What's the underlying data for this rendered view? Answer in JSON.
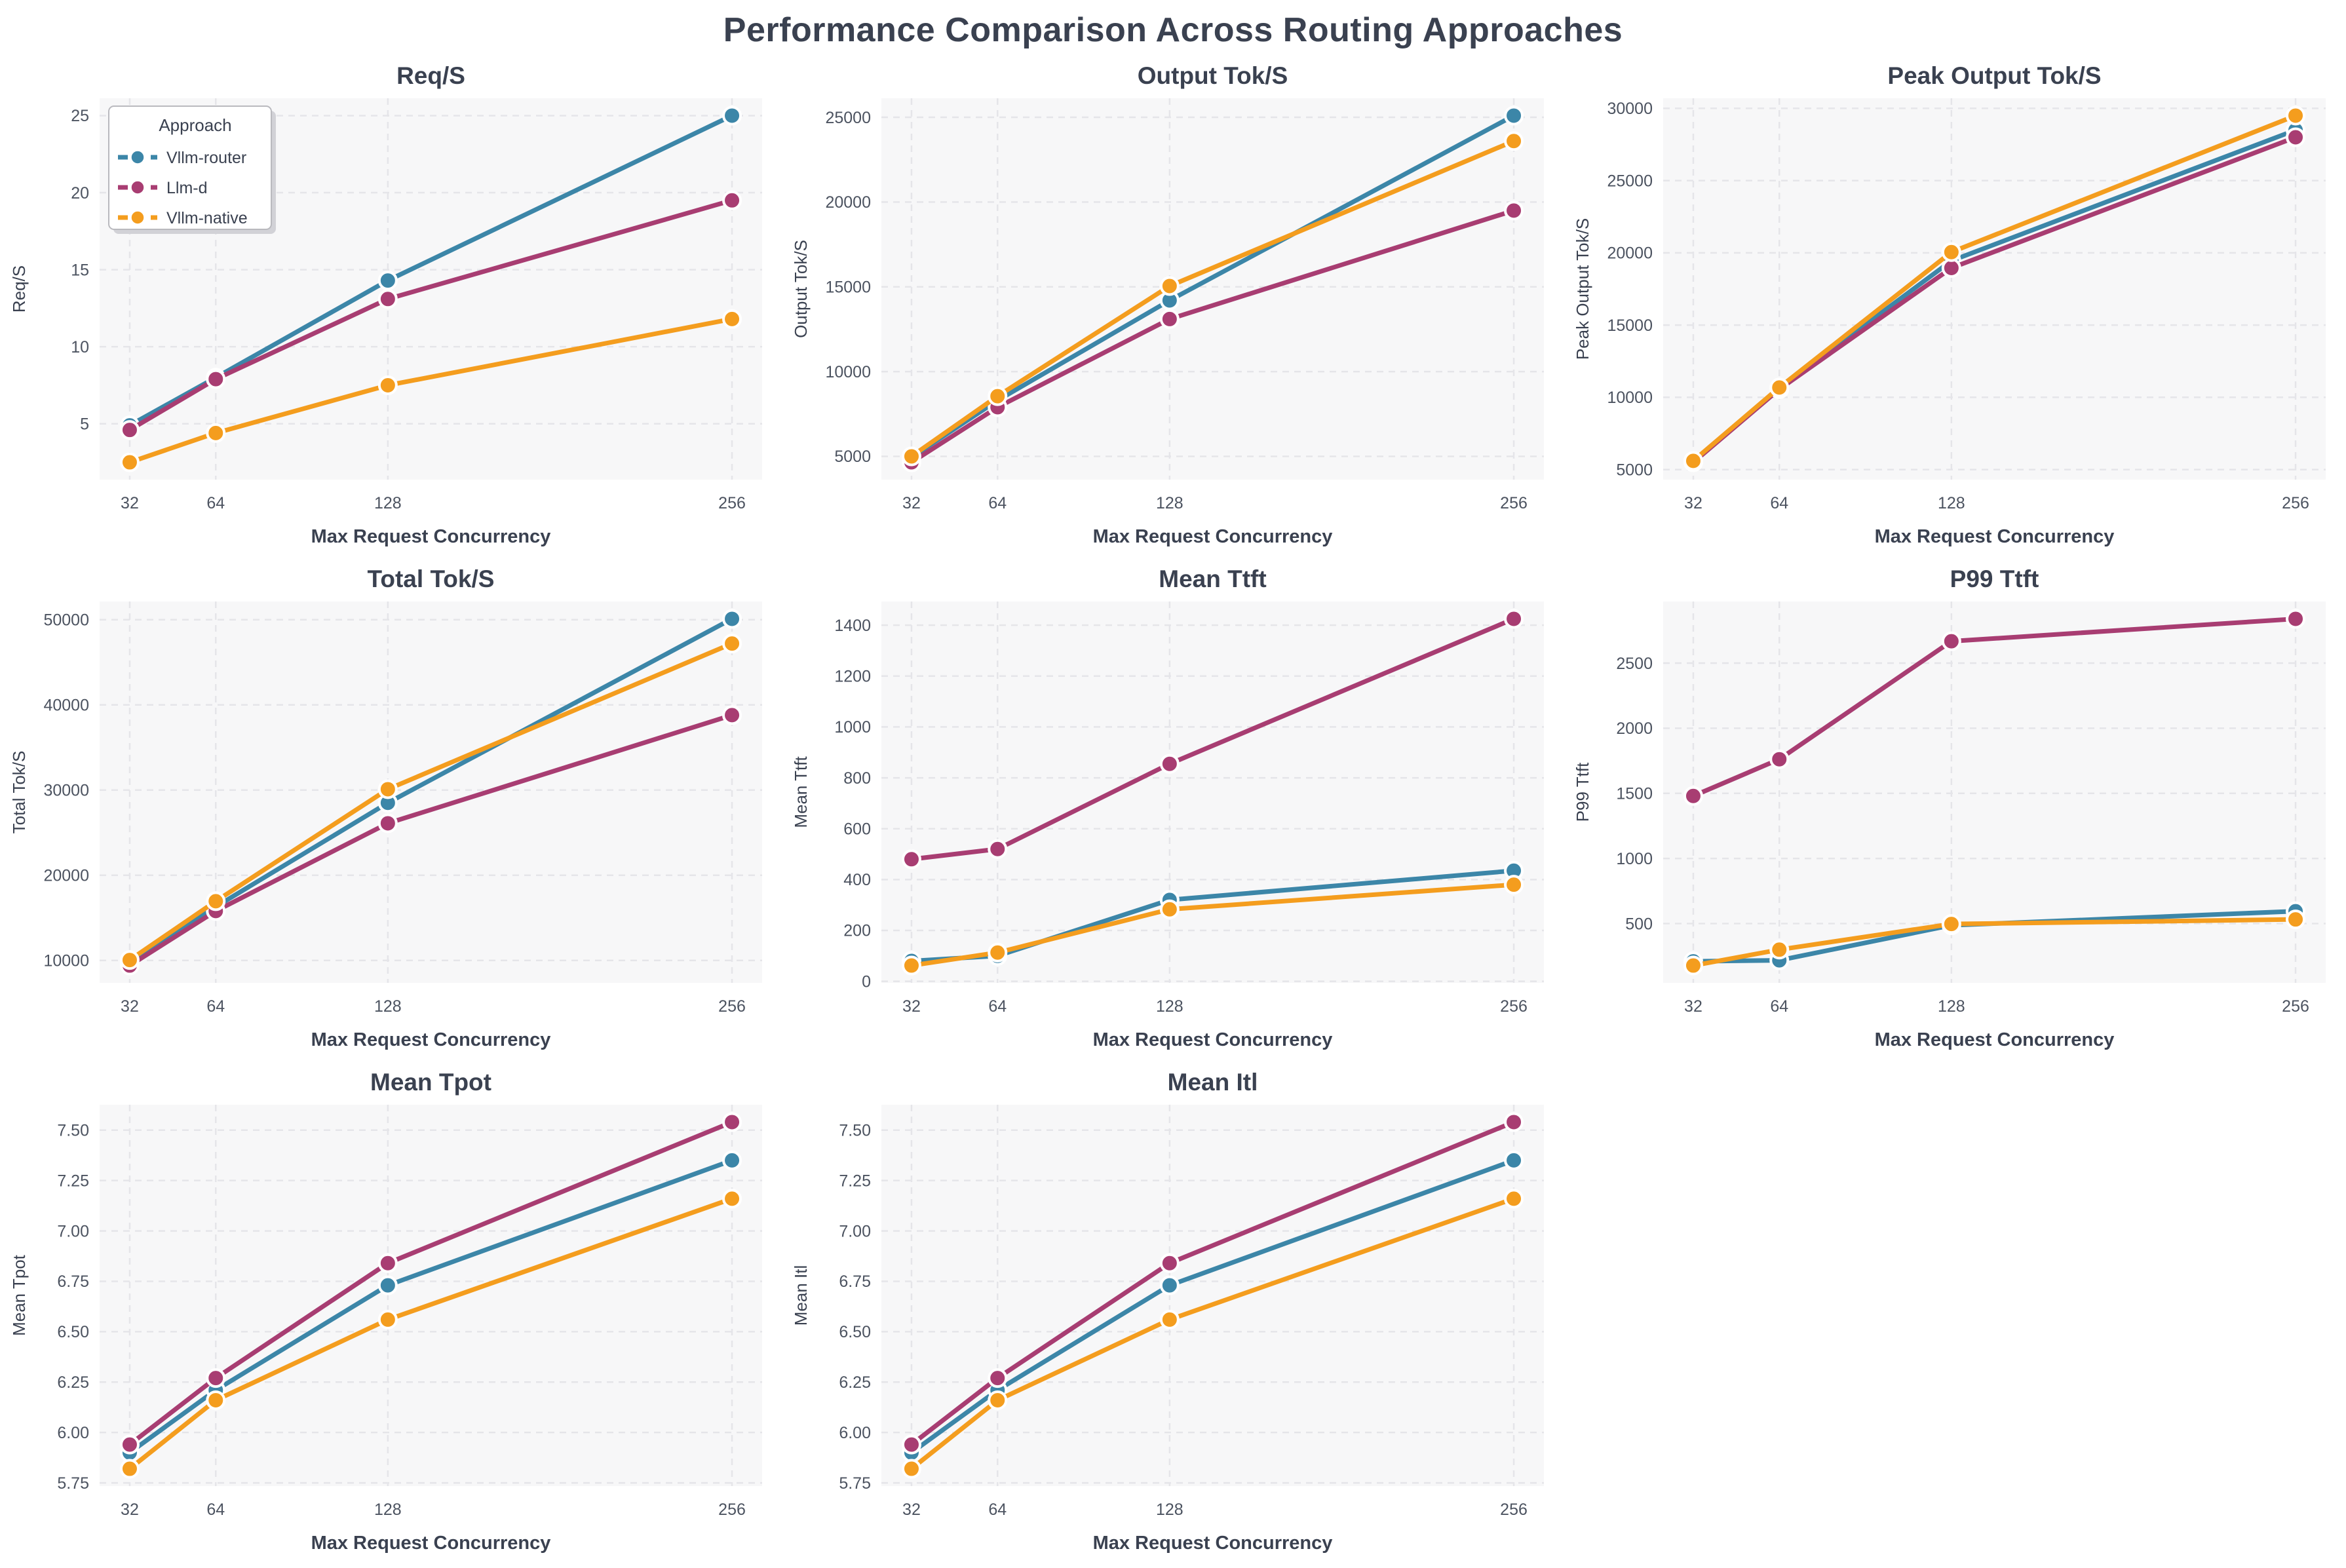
{
  "figure": {
    "title": "Performance Comparison Across Routing Approaches"
  },
  "legend": {
    "title": "Approach",
    "entries": [
      {
        "label": "Vllm-router",
        "color_key": "vllm_router"
      },
      {
        "label": "Llm-d",
        "color_key": "llm_d"
      },
      {
        "label": "Vllm-native",
        "color_key": "vllm_native"
      }
    ]
  },
  "colors": {
    "vllm_router": "#3C86A8",
    "llm_d": "#A83D72",
    "vllm_native": "#F49D1E",
    "plot_bg": "#F7F7F8",
    "grid": "#E5E5E9",
    "text_dark": "#3A4150",
    "text_tick": "#4C5360",
    "legend_border": "#B9B9BE",
    "legend_shadow": "#D2D2D7"
  },
  "axis": {
    "xlabel": "Max Request Concurrency",
    "x_values": [
      32,
      64,
      128,
      256
    ],
    "x_tick_labels": [
      "32",
      "64",
      "128",
      "256"
    ]
  },
  "chart_data": [
    {
      "id": "req-s",
      "type": "line",
      "title": "Req/S",
      "ylabel": "Req/S",
      "xlabel": "Max Request Concurrency",
      "x": [
        32,
        64,
        128,
        256
      ],
      "yticks": [
        5,
        10,
        15,
        20,
        25
      ],
      "ytick_labels": [
        "5",
        "10",
        "15",
        "20",
        "25"
      ],
      "show_legend": true,
      "series": [
        {
          "name": "Vllm-router",
          "color_key": "vllm_router",
          "values": [
            4.9,
            8.0,
            14.3,
            25.0
          ]
        },
        {
          "name": "Llm-d",
          "color_key": "llm_d",
          "values": [
            4.6,
            7.9,
            13.1,
            19.5
          ]
        },
        {
          "name": "Vllm-native",
          "color_key": "vllm_native",
          "values": [
            2.5,
            4.4,
            7.5,
            11.8
          ]
        }
      ]
    },
    {
      "id": "output-tok-s",
      "type": "line",
      "title": "Output Tok/S",
      "ylabel": "Output Tok/S",
      "xlabel": "Max Request Concurrency",
      "x": [
        32,
        64,
        128,
        256
      ],
      "yticks": [
        5000,
        10000,
        15000,
        20000,
        25000
      ],
      "ytick_labels": [
        "5000",
        "10000",
        "15000",
        "20000",
        "25000"
      ],
      "show_legend": false,
      "series": [
        {
          "name": "Vllm-router",
          "color_key": "vllm_router",
          "values": [
            4950,
            8300,
            14200,
            25100
          ]
        },
        {
          "name": "Llm-d",
          "color_key": "llm_d",
          "values": [
            4650,
            7900,
            13100,
            19500
          ]
        },
        {
          "name": "Vllm-native",
          "color_key": "vllm_native",
          "values": [
            5000,
            8550,
            15050,
            23600
          ]
        }
      ]
    },
    {
      "id": "peak-output-tok-s",
      "type": "line",
      "title": "Peak Output Tok/S",
      "ylabel": "Peak Output Tok/S",
      "xlabel": "Max Request Concurrency",
      "x": [
        32,
        64,
        128,
        256
      ],
      "yticks": [
        5000,
        10000,
        15000,
        20000,
        25000,
        30000
      ],
      "ytick_labels": [
        "5000",
        "10000",
        "15000",
        "20000",
        "25000",
        "30000"
      ],
      "show_legend": false,
      "series": [
        {
          "name": "Vllm-router",
          "color_key": "vllm_router",
          "values": [
            5560,
            10600,
            19450,
            28500
          ]
        },
        {
          "name": "Llm-d",
          "color_key": "llm_d",
          "values": [
            5500,
            10560,
            18950,
            28000
          ]
        },
        {
          "name": "Vllm-native",
          "color_key": "vllm_native",
          "values": [
            5600,
            10680,
            20050,
            29500
          ]
        }
      ]
    },
    {
      "id": "total-tok-s",
      "type": "line",
      "title": "Total Tok/S",
      "ylabel": "Total Tok/S",
      "xlabel": "Max Request Concurrency",
      "x": [
        32,
        64,
        128,
        256
      ],
      "yticks": [
        10000,
        20000,
        30000,
        40000,
        50000
      ],
      "ytick_labels": [
        "10000",
        "20000",
        "30000",
        "40000",
        "50000"
      ],
      "show_legend": false,
      "series": [
        {
          "name": "Vllm-router",
          "color_key": "vllm_router",
          "values": [
            9900,
            16300,
            28500,
            50100
          ]
        },
        {
          "name": "Llm-d",
          "color_key": "llm_d",
          "values": [
            9400,
            15800,
            26100,
            38800
          ]
        },
        {
          "name": "Vllm-native",
          "color_key": "vllm_native",
          "values": [
            10050,
            16950,
            30100,
            47200
          ]
        }
      ]
    },
    {
      "id": "mean-ttft",
      "type": "line",
      "title": "Mean Ttft",
      "ylabel": "Mean Ttft",
      "xlabel": "Max Request Concurrency",
      "x": [
        32,
        64,
        128,
        256
      ],
      "yticks": [
        0,
        200,
        400,
        600,
        800,
        1000,
        1200,
        1400
      ],
      "ytick_labels": [
        "0",
        "200",
        "400",
        "600",
        "800",
        "1000",
        "1200",
        "1400"
      ],
      "show_legend": false,
      "series": [
        {
          "name": "Vllm-router",
          "color_key": "vllm_router",
          "values": [
            80,
            100,
            320,
            435
          ]
        },
        {
          "name": "Llm-d",
          "color_key": "llm_d",
          "values": [
            480,
            520,
            855,
            1425
          ]
        },
        {
          "name": "Vllm-native",
          "color_key": "vllm_native",
          "values": [
            62,
            113,
            283,
            380
          ]
        }
      ]
    },
    {
      "id": "p99-ttft",
      "type": "line",
      "title": "P99 Ttft",
      "ylabel": "P99 Ttft",
      "xlabel": "Max Request Concurrency",
      "x": [
        32,
        64,
        128,
        256
      ],
      "yticks": [
        500,
        1000,
        1500,
        2000,
        2500
      ],
      "ytick_labels": [
        "500",
        "1000",
        "1500",
        "2000",
        "2500"
      ],
      "show_legend": false,
      "series": [
        {
          "name": "Vllm-router",
          "color_key": "vllm_router",
          "values": [
            210,
            218,
            487,
            595
          ]
        },
        {
          "name": "Llm-d",
          "color_key": "llm_d",
          "values": [
            1480,
            1762,
            2668,
            2840
          ]
        },
        {
          "name": "Vllm-native",
          "color_key": "vllm_native",
          "values": [
            178,
            300,
            497,
            532
          ]
        }
      ]
    },
    {
      "id": "mean-tpot",
      "type": "line",
      "title": "Mean Tpot",
      "ylabel": "Mean Tpot",
      "xlabel": "Max Request Concurrency",
      "x": [
        32,
        64,
        128,
        256
      ],
      "yticks": [
        5.75,
        6.0,
        6.25,
        6.5,
        6.75,
        7.0,
        7.25,
        7.5
      ],
      "ytick_labels": [
        "5.75",
        "6.00",
        "6.25",
        "6.50",
        "6.75",
        "7.00",
        "7.25",
        "7.50"
      ],
      "show_legend": false,
      "series": [
        {
          "name": "Vllm-router",
          "color_key": "vllm_router",
          "values": [
            5.9,
            6.21,
            6.73,
            7.35
          ]
        },
        {
          "name": "Llm-d",
          "color_key": "llm_d",
          "values": [
            5.94,
            6.27,
            6.84,
            7.54
          ]
        },
        {
          "name": "Vllm-native",
          "color_key": "vllm_native",
          "values": [
            5.82,
            6.16,
            6.56,
            7.16
          ]
        }
      ]
    },
    {
      "id": "mean-itl",
      "type": "line",
      "title": "Mean Itl",
      "ylabel": "Mean Itl",
      "xlabel": "Max Request Concurrency",
      "x": [
        32,
        64,
        128,
        256
      ],
      "yticks": [
        5.75,
        6.0,
        6.25,
        6.5,
        6.75,
        7.0,
        7.25,
        7.5
      ],
      "ytick_labels": [
        "5.75",
        "6.00",
        "6.25",
        "6.50",
        "6.75",
        "7.00",
        "7.25",
        "7.50"
      ],
      "show_legend": false,
      "series": [
        {
          "name": "Vllm-router",
          "color_key": "vllm_router",
          "values": [
            5.9,
            6.21,
            6.73,
            7.35
          ]
        },
        {
          "name": "Llm-d",
          "color_key": "llm_d",
          "values": [
            5.94,
            6.27,
            6.84,
            7.54
          ]
        },
        {
          "name": "Vllm-native",
          "color_key": "vllm_native",
          "values": [
            5.82,
            6.16,
            6.56,
            7.16
          ]
        }
      ]
    }
  ]
}
